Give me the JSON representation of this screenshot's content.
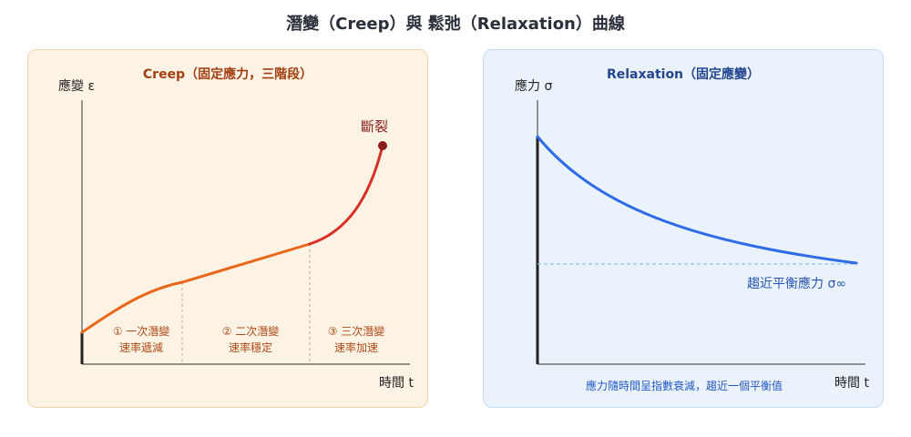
{
  "title": "潛變（Creep）與 鬆弛（Relaxation）曲線",
  "creep": {
    "title": "Creep（固定應力，三階段）",
    "y_label": "應變 ε",
    "x_label": "時間 t",
    "rupture_label": "斷裂",
    "stages": [
      {
        "name": "① 一次潛變",
        "desc": "速率遞減"
      },
      {
        "name": "② 二次潛變",
        "desc": "速率穩定"
      },
      {
        "name": "③ 三次潛變",
        "desc": "速率加速"
      }
    ],
    "colors": {
      "primary": "#e8671a",
      "tertiary": "#d93025",
      "rupture": "#8b1a1a"
    }
  },
  "relaxation": {
    "title": "Relaxation（固定應變）",
    "y_label": "應力 σ",
    "x_label": "時間 t",
    "equilibrium_label": "趨近平衡應力 σ∞",
    "note": "應力隨時間呈指數衰減，趨近一個平衡值",
    "colors": {
      "curve": "#2e6be6",
      "equilibrium": "#8fc4e8"
    }
  }
}
